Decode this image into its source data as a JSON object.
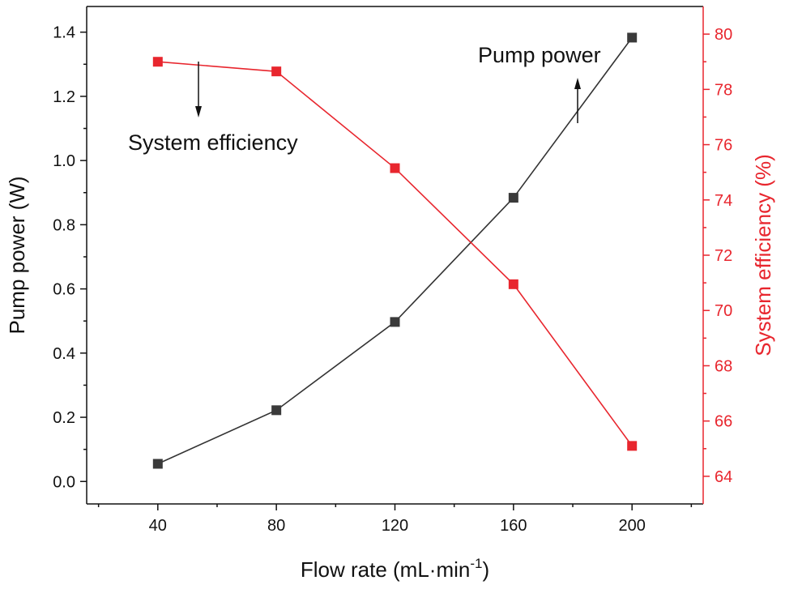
{
  "chart_data": {
    "type": "line",
    "title": "",
    "x": [
      40,
      80,
      120,
      160,
      200
    ],
    "x_ticks": [
      "40",
      "80",
      "120",
      "160",
      "200"
    ],
    "xlim": [
      16,
      224
    ],
    "xlabel": {
      "main": "Flow rate (mL·min",
      "sup": "-1",
      "close": ")"
    },
    "y_left": {
      "label": "Pump power (W)",
      "ylim": [
        -0.07,
        1.48
      ],
      "ticks": [
        "0.0",
        "0.2",
        "0.4",
        "0.6",
        "0.8",
        "1.0",
        "1.2",
        "1.4"
      ],
      "tick_values": [
        0.0,
        0.2,
        0.4,
        0.6,
        0.8,
        1.0,
        1.2,
        1.4
      ]
    },
    "y_right": {
      "label": "System efficiency (%)",
      "ylim": [
        63.0,
        81.0
      ],
      "ticks": [
        "64",
        "66",
        "68",
        "70",
        "72",
        "74",
        "76",
        "78",
        "80"
      ],
      "tick_values": [
        64,
        66,
        68,
        70,
        72,
        74,
        76,
        78,
        80
      ]
    },
    "series": [
      {
        "name": "Pump power",
        "axis": "left",
        "color": "#333333",
        "marker_color": "#3a3a3a",
        "values": [
          0.055,
          0.222,
          0.497,
          0.884,
          1.383
        ]
      },
      {
        "name": "System efficiency",
        "axis": "right",
        "color": "#e8262e",
        "marker_color": "#e8262e",
        "values": [
          79.0,
          78.65,
          75.15,
          70.95,
          65.1
        ]
      }
    ],
    "annotations": [
      {
        "text": "System efficiency",
        "arrow": "down",
        "points_to": "left"
      },
      {
        "text": "Pump power",
        "arrow": "up",
        "points_to": "right"
      }
    ],
    "colors": {
      "left_axis": "#111111",
      "right_axis": "#e8262e"
    }
  }
}
